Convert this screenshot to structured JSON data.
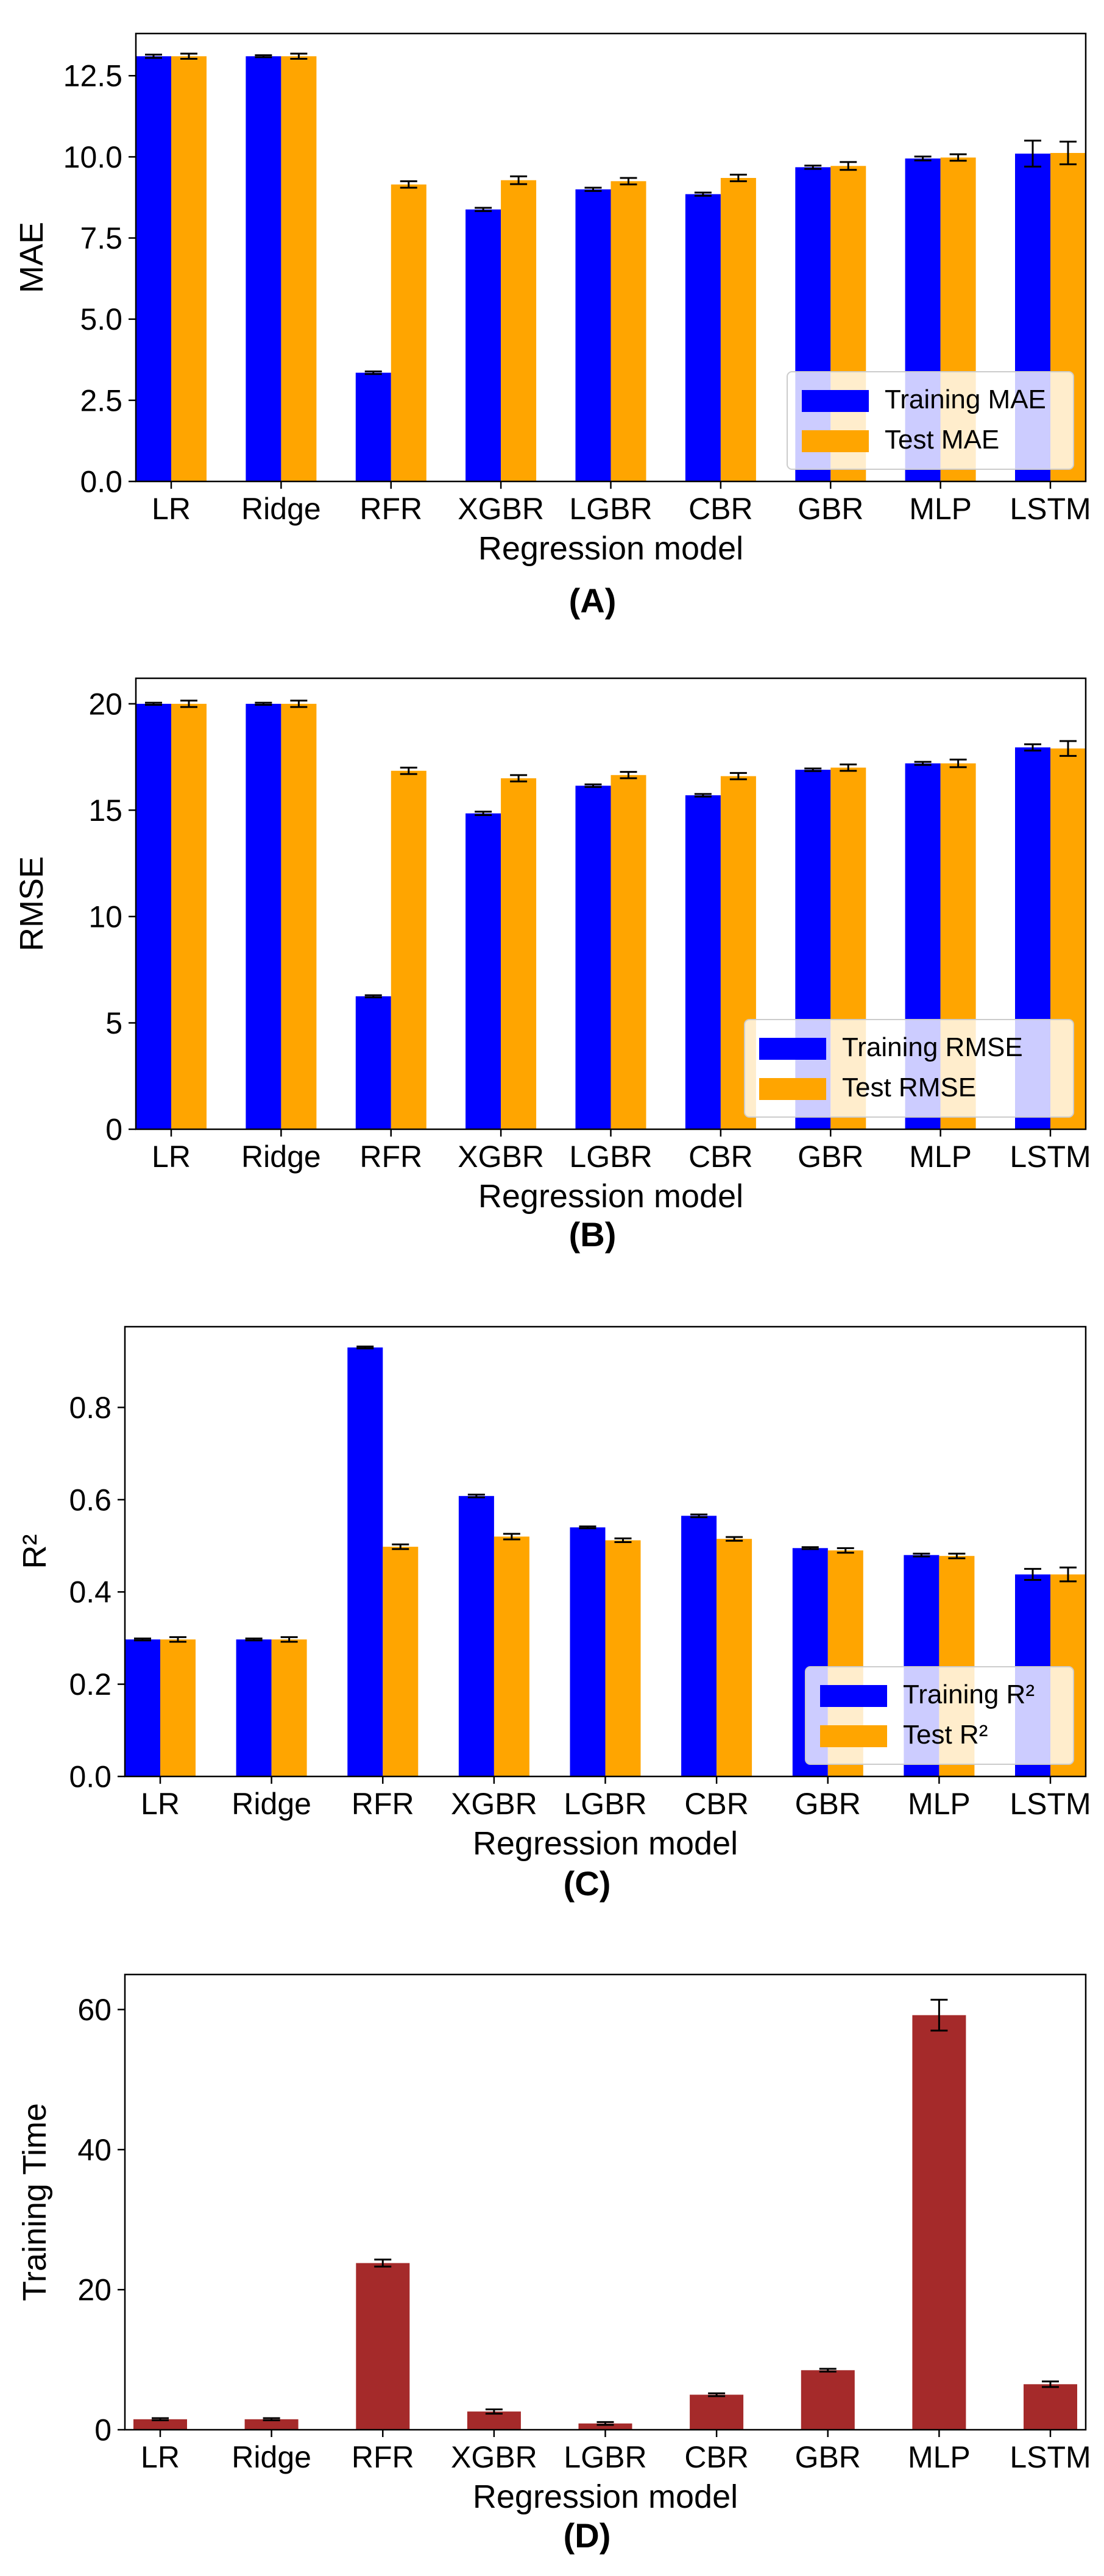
{
  "colors": {
    "train": "#0000FF",
    "test": "#FFA500",
    "time": "#A52A2A",
    "errorbar": "#000000",
    "axis": "#000000",
    "legend_border": "#CCCCCC"
  },
  "chart_data": [
    {
      "type": "bar",
      "panel": "(A)",
      "xlabel": "Regression model",
      "ylabel": "MAE",
      "ylim": [
        0,
        13.8
      ],
      "yticks": [
        0.0,
        2.5,
        5.0,
        7.5,
        10.0,
        12.5
      ],
      "ytick_labels": [
        "0.0",
        "2.5",
        "5.0",
        "7.5",
        "10.0",
        "12.5"
      ],
      "categories": [
        "LR",
        "Ridge",
        "RFR",
        "XGBR",
        "LGBR",
        "CBR",
        "GBR",
        "MLP",
        "LSTM"
      ],
      "legend": "lower right",
      "series": [
        {
          "name": "Training MAE",
          "color": "#0000FF",
          "values": [
            13.1,
            13.1,
            3.35,
            8.38,
            9.0,
            8.85,
            9.68,
            9.95,
            10.1
          ],
          "errors": [
            0.05,
            0.03,
            0.04,
            0.05,
            0.05,
            0.05,
            0.05,
            0.06,
            0.4
          ]
        },
        {
          "name": "Test MAE",
          "color": "#FFA500",
          "values": [
            13.1,
            13.1,
            9.15,
            9.28,
            9.25,
            9.35,
            9.72,
            9.98,
            10.12
          ],
          "errors": [
            0.08,
            0.08,
            0.1,
            0.12,
            0.1,
            0.1,
            0.12,
            0.1,
            0.35
          ]
        }
      ]
    },
    {
      "type": "bar",
      "panel": "(B)",
      "xlabel": "Regression model",
      "ylabel": "RMSE",
      "ylim": [
        0,
        21.2
      ],
      "yticks": [
        0,
        5,
        10,
        15,
        20
      ],
      "ytick_labels": [
        "0",
        "5",
        "10",
        "15",
        "20"
      ],
      "categories": [
        "LR",
        "Ridge",
        "RFR",
        "XGBR",
        "LGBR",
        "CBR",
        "GBR",
        "MLP",
        "LSTM"
      ],
      "legend": "lower right",
      "series": [
        {
          "name": "Training RMSE",
          "color": "#0000FF",
          "values": [
            20.0,
            20.0,
            6.25,
            14.85,
            16.15,
            15.7,
            16.9,
            17.2,
            17.95
          ],
          "errors": [
            0.05,
            0.05,
            0.05,
            0.08,
            0.06,
            0.06,
            0.06,
            0.07,
            0.15
          ]
        },
        {
          "name": "Test RMSE",
          "color": "#FFA500",
          "values": [
            20.0,
            20.0,
            16.85,
            16.5,
            16.65,
            16.6,
            17.0,
            17.2,
            17.9
          ],
          "errors": [
            0.15,
            0.15,
            0.15,
            0.15,
            0.15,
            0.15,
            0.15,
            0.18,
            0.35
          ]
        }
      ]
    },
    {
      "type": "bar",
      "panel": "(C)",
      "xlabel": "Regression model",
      "ylabel": "R²",
      "ylim": [
        0,
        0.975
      ],
      "yticks": [
        0.0,
        0.2,
        0.4,
        0.6,
        0.8
      ],
      "ytick_labels": [
        "0.0",
        "0.2",
        "0.4",
        "0.6",
        "0.8"
      ],
      "categories": [
        "LR",
        "Ridge",
        "RFR",
        "XGBR",
        "LGBR",
        "CBR",
        "GBR",
        "MLP",
        "LSTM"
      ],
      "legend": "lower right",
      "series": [
        {
          "name": "Training R²",
          "color": "#0000FF",
          "values": [
            0.297,
            0.297,
            0.93,
            0.608,
            0.54,
            0.565,
            0.495,
            0.48,
            0.438
          ],
          "errors": [
            0.002,
            0.002,
            0.002,
            0.003,
            0.002,
            0.003,
            0.002,
            0.003,
            0.012
          ]
        },
        {
          "name": "Test R²",
          "color": "#FFA500",
          "values": [
            0.297,
            0.297,
            0.498,
            0.52,
            0.512,
            0.515,
            0.49,
            0.478,
            0.438
          ],
          "errors": [
            0.005,
            0.005,
            0.005,
            0.006,
            0.004,
            0.004,
            0.005,
            0.005,
            0.015
          ]
        }
      ]
    },
    {
      "type": "bar",
      "panel": "(D)",
      "xlabel": "Regression model",
      "ylabel": "Training Time",
      "ylim": [
        0,
        65
      ],
      "yticks": [
        0,
        20,
        40,
        60
      ],
      "ytick_labels": [
        "0",
        "20",
        "40",
        "60"
      ],
      "categories": [
        "LR",
        "Ridge",
        "RFR",
        "XGBR",
        "LGBR",
        "CBR",
        "GBR",
        "MLP",
        "LSTM"
      ],
      "legend": "none",
      "series": [
        {
          "color": "#A52A2A",
          "values": [
            1.5,
            1.5,
            23.8,
            2.6,
            0.9,
            5.0,
            8.5,
            59.2,
            6.5
          ],
          "errors": [
            0.15,
            0.15,
            0.5,
            0.3,
            0.2,
            0.2,
            0.2,
            2.2,
            0.4
          ]
        }
      ]
    }
  ]
}
